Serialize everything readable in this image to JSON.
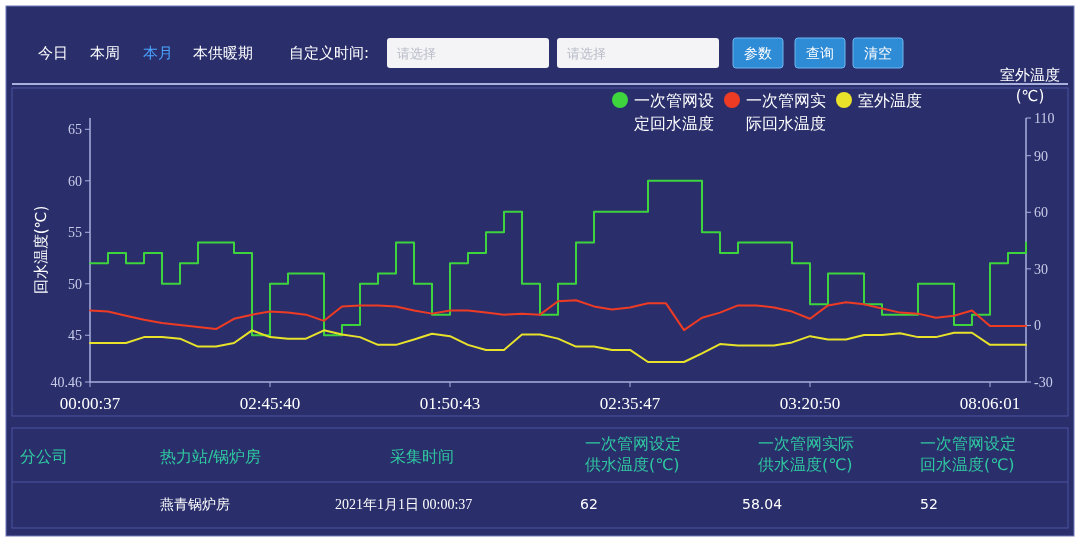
{
  "chart_data": [
    {
      "type": "other",
      "annotations": [
        "今日",
        "本周",
        "本月",
        "本供暖期",
        "自定义时间:",
        "请选择",
        "请选择",
        "参数",
        "查询",
        "清空"
      ]
    },
    {
      "type": "line",
      "ylabel": "回水温度(℃)",
      "y2label": "室外温度 (℃)",
      "categories": [
        "00:00:37",
        null,
        null,
        null,
        null,
        null,
        null,
        null,
        null,
        null,
        "02:45:40",
        null,
        null,
        null,
        null,
        null,
        null,
        null,
        null,
        null,
        "01:50:43",
        null,
        null,
        null,
        null,
        null,
        null,
        null,
        null,
        null,
        "02:35:47",
        null,
        null,
        null,
        null,
        null,
        null,
        null,
        null,
        null,
        "03:20:50",
        null,
        null,
        null,
        null,
        null,
        null,
        null,
        null,
        null,
        "08:06:01",
        null,
        null
      ],
      "ylim": [
        40.46,
        66.1
      ],
      "yticks": [
        40.46,
        45,
        50,
        55,
        60,
        65
      ],
      "y2lim": [
        -30,
        110
      ],
      "y2ticks": [
        -30,
        0,
        30,
        60,
        90,
        110
      ],
      "grid": false,
      "legend": "top right",
      "marker": "none",
      "line_style": "solid",
      "series": [
        {
          "name": "一次管网设定回水温度",
          "type": "step",
          "color": "#3ed43e",
          "values": [
            52,
            53,
            52,
            53,
            50,
            52,
            54,
            54,
            53,
            45,
            50,
            51,
            51,
            45,
            46,
            50,
            51,
            54,
            50,
            47,
            52,
            53,
            55,
            57,
            50,
            47,
            50,
            54,
            57,
            57,
            57,
            60,
            60,
            60,
            55,
            53,
            54,
            54,
            54,
            52,
            48,
            51,
            51,
            48,
            47,
            47,
            50,
            50,
            46,
            47,
            52,
            53,
            54
          ]
        },
        {
          "name": "一次管网实际回水温度",
          "type": "line",
          "color": "#ee3b24",
          "values": [
            47.4,
            47.3,
            46.9,
            46.5,
            46.2,
            46.0,
            45.8,
            45.6,
            46.6,
            47.0,
            47.3,
            47.2,
            47.0,
            46.4,
            47.8,
            47.9,
            47.9,
            47.8,
            47.4,
            47.1,
            47.4,
            47.4,
            47.2,
            47.0,
            47.1,
            47.0,
            48.3,
            48.4,
            47.8,
            47.5,
            47.7,
            48.1,
            48.1,
            45.5,
            46.7,
            47.2,
            47.9,
            47.9,
            47.7,
            47.3,
            46.6,
            47.9,
            48.2,
            48.0,
            47.6,
            47.2,
            47.1,
            46.7,
            46.9,
            47.4,
            45.9,
            45.9,
            45.9
          ]
        },
        {
          "name": "室外温度",
          "type": "line",
          "axis": "y2",
          "color": "#e8e22a",
          "values": [
            -9.3,
            -9.3,
            -9.3,
            -6.2,
            -6.2,
            -7.0,
            -11.2,
            -11.2,
            -9.3,
            -2.6,
            -6.2,
            -7.0,
            -7.0,
            -2.6,
            -4.8,
            -6.2,
            -10.3,
            -10.3,
            -7.5,
            -4.4,
            -5.7,
            -10.3,
            -13.0,
            -13.0,
            -4.8,
            -4.8,
            -7.0,
            -11.2,
            -11.2,
            -13.0,
            -13.0,
            -19.4,
            -19.4,
            -19.4,
            -14.8,
            -9.9,
            -10.6,
            -10.6,
            -10.6,
            -9.0,
            -5.7,
            -7.5,
            -7.5,
            -5.1,
            -5.1,
            -4.2,
            -6.2,
            -6.2,
            -3.9,
            -3.9,
            -10.3,
            -10.3,
            -10.3
          ]
        }
      ]
    },
    {
      "type": "other",
      "annotations": [
        "分公司",
        "热力站/锅炉房",
        "采集时间",
        "一次管网设定供水温度(℃)",
        "一次管网实际供水温度(℃)",
        "一次管网设定回水温度(℃)",
        "燕青锅炉房",
        "2021年1月1日 00:00:37",
        "62",
        "58.04",
        "52"
      ]
    }
  ]
}
